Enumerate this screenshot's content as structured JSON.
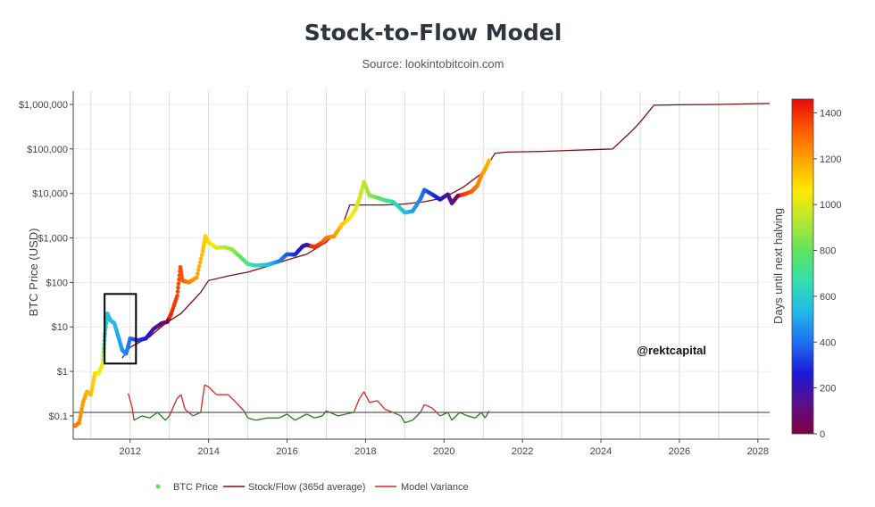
{
  "chart_data": {
    "type": "scatter",
    "title": "Stock-to-Flow Model",
    "subtitle": "Source: lookintobitcoin.com",
    "ylabel": "BTC Price (USD)",
    "xlabel": "",
    "y_scale": "log",
    "ylim": [
      0.03,
      2000000
    ],
    "xlim": [
      2010.55,
      2028.3
    ],
    "x_ticks": [
      2012,
      2014,
      2016,
      2018,
      2020,
      2022,
      2024,
      2026,
      2028
    ],
    "x_tick_labels": [
      "2012",
      "2014",
      "2016",
      "2018",
      "2020",
      "2022",
      "2024",
      "2026",
      "2028"
    ],
    "y_ticks": [
      0.1,
      1,
      10,
      100,
      1000,
      10000,
      100000,
      1000000
    ],
    "y_tick_labels": [
      "$0.1",
      "$1",
      "$10",
      "$100",
      "$1,000",
      "$10,000",
      "$100,000",
      "$1,000,000"
    ],
    "grid": true,
    "legend_position": "bottom-center",
    "reference_line_y": 0.12,
    "series": [
      {
        "name": "BTC Price",
        "mode": "markers",
        "color_by": "days_until_next_halving",
        "points": [
          [
            2010.6,
            0.06,
            1290
          ],
          [
            2010.7,
            0.07,
            1250
          ],
          [
            2010.8,
            0.2,
            1210
          ],
          [
            2010.9,
            0.35,
            1170
          ],
          [
            2011.0,
            0.3,
            1140
          ],
          [
            2011.1,
            0.9,
            1100
          ],
          [
            2011.2,
            0.9,
            1060
          ],
          [
            2011.3,
            1.5,
            1020
          ],
          [
            2011.35,
            6,
            600
          ],
          [
            2011.42,
            20,
            580
          ],
          [
            2011.5,
            14,
            560
          ],
          [
            2011.6,
            12,
            540
          ],
          [
            2011.7,
            6,
            500
          ],
          [
            2011.8,
            3,
            470
          ],
          [
            2011.9,
            2.5,
            430
          ],
          [
            2012.0,
            5.5,
            400
          ],
          [
            2012.2,
            5,
            330
          ],
          [
            2012.4,
            5.5,
            260
          ],
          [
            2012.6,
            9,
            180
          ],
          [
            2012.8,
            12,
            100
          ],
          [
            2012.95,
            13,
            30
          ],
          [
            2013.05,
            20,
            1410
          ],
          [
            2013.2,
            50,
            1370
          ],
          [
            2013.28,
            220,
            1350
          ],
          [
            2013.33,
            110,
            1330
          ],
          [
            2013.5,
            100,
            1270
          ],
          [
            2013.7,
            130,
            1200
          ],
          [
            2013.85,
            500,
            1140
          ],
          [
            2013.92,
            1100,
            1120
          ],
          [
            2014.0,
            800,
            1090
          ],
          [
            2014.2,
            600,
            1020
          ],
          [
            2014.4,
            620,
            950
          ],
          [
            2014.6,
            550,
            880
          ],
          [
            2014.8,
            380,
            800
          ],
          [
            2015.0,
            260,
            730
          ],
          [
            2015.2,
            240,
            660
          ],
          [
            2015.5,
            250,
            550
          ],
          [
            2015.8,
            300,
            440
          ],
          [
            2016.0,
            430,
            370
          ],
          [
            2016.2,
            420,
            300
          ],
          [
            2016.4,
            650,
            220
          ],
          [
            2016.5,
            700,
            180
          ],
          [
            2016.7,
            620,
            1400
          ],
          [
            2016.9,
            800,
            1350
          ],
          [
            2017.0,
            1000,
            1290
          ],
          [
            2017.2,
            1100,
            1220
          ],
          [
            2017.4,
            2000,
            1140
          ],
          [
            2017.6,
            2800,
            1070
          ],
          [
            2017.75,
            4500,
            1020
          ],
          [
            2017.85,
            8000,
            980
          ],
          [
            2017.96,
            18000,
            940
          ],
          [
            2018.1,
            9000,
            890
          ],
          [
            2018.3,
            8000,
            820
          ],
          [
            2018.5,
            7000,
            740
          ],
          [
            2018.7,
            6500,
            670
          ],
          [
            2018.85,
            5000,
            620
          ],
          [
            2019.0,
            3700,
            560
          ],
          [
            2019.2,
            4000,
            490
          ],
          [
            2019.4,
            7500,
            420
          ],
          [
            2019.5,
            12000,
            380
          ],
          [
            2019.7,
            9500,
            310
          ],
          [
            2019.9,
            7300,
            240
          ],
          [
            2020.1,
            9500,
            170
          ],
          [
            2020.2,
            6000,
            130
          ],
          [
            2020.35,
            8800,
            60
          ],
          [
            2020.5,
            9500,
            1400
          ],
          [
            2020.7,
            11000,
            1330
          ],
          [
            2020.85,
            15000,
            1270
          ],
          [
            2020.95,
            25000,
            1230
          ],
          [
            2021.05,
            35000,
            1200
          ],
          [
            2021.15,
            55000,
            1160
          ]
        ]
      },
      {
        "name": "Stock/Flow (365d average)",
        "mode": "line",
        "color": "#7a0e12",
        "points": [
          [
            2011.8,
            2
          ],
          [
            2012.0,
            3.5
          ],
          [
            2012.5,
            6
          ],
          [
            2012.9,
            12
          ],
          [
            2013.3,
            20
          ],
          [
            2013.8,
            60
          ],
          [
            2014.0,
            110
          ],
          [
            2014.5,
            140
          ],
          [
            2015.0,
            170
          ],
          [
            2015.5,
            230
          ],
          [
            2016.0,
            320
          ],
          [
            2016.5,
            430
          ],
          [
            2017.0,
            800
          ],
          [
            2017.4,
            1800
          ],
          [
            2017.6,
            5500
          ],
          [
            2018.5,
            5500
          ],
          [
            2019.0,
            5800
          ],
          [
            2019.5,
            6500
          ],
          [
            2020.0,
            8000
          ],
          [
            2020.5,
            14000
          ],
          [
            2021.0,
            30000
          ],
          [
            2021.3,
            80000
          ],
          [
            2021.6,
            85000
          ],
          [
            2022.5,
            88000
          ],
          [
            2024.0,
            98000
          ],
          [
            2024.3,
            100000
          ],
          [
            2024.8,
            260000
          ],
          [
            2025.0,
            400000
          ],
          [
            2025.35,
            960000
          ],
          [
            2026.0,
            980000
          ],
          [
            2027.0,
            1000000
          ],
          [
            2028.3,
            1050000
          ]
        ]
      },
      {
        "name": "Model Variance",
        "mode": "line",
        "color_segments": {
          "above_reference": "#d62728",
          "below_reference": "#2a7a1e"
        },
        "points": [
          [
            2011.95,
            0.32
          ],
          [
            2012.05,
            0.16
          ],
          [
            2012.1,
            0.08
          ],
          [
            2012.3,
            0.1
          ],
          [
            2012.5,
            0.09
          ],
          [
            2012.7,
            0.12
          ],
          [
            2012.9,
            0.08
          ],
          [
            2013.0,
            0.1
          ],
          [
            2013.2,
            0.25
          ],
          [
            2013.3,
            0.3
          ],
          [
            2013.4,
            0.14
          ],
          [
            2013.6,
            0.1
          ],
          [
            2013.8,
            0.12
          ],
          [
            2013.9,
            0.5
          ],
          [
            2014.0,
            0.45
          ],
          [
            2014.2,
            0.3
          ],
          [
            2014.5,
            0.3
          ],
          [
            2014.7,
            0.2
          ],
          [
            2014.9,
            0.13
          ],
          [
            2015.0,
            0.09
          ],
          [
            2015.2,
            0.08
          ],
          [
            2015.5,
            0.09
          ],
          [
            2015.8,
            0.09
          ],
          [
            2016.0,
            0.11
          ],
          [
            2016.2,
            0.08
          ],
          [
            2016.5,
            0.11
          ],
          [
            2016.7,
            0.09
          ],
          [
            2016.9,
            0.1
          ],
          [
            2017.0,
            0.13
          ],
          [
            2017.3,
            0.1
          ],
          [
            2017.5,
            0.11
          ],
          [
            2017.7,
            0.12
          ],
          [
            2017.85,
            0.25
          ],
          [
            2017.96,
            0.35
          ],
          [
            2018.1,
            0.2
          ],
          [
            2018.3,
            0.22
          ],
          [
            2018.5,
            0.14
          ],
          [
            2018.7,
            0.12
          ],
          [
            2018.9,
            0.1
          ],
          [
            2019.0,
            0.07
          ],
          [
            2019.2,
            0.08
          ],
          [
            2019.4,
            0.12
          ],
          [
            2019.5,
            0.18
          ],
          [
            2019.7,
            0.15
          ],
          [
            2019.9,
            0.1
          ],
          [
            2020.1,
            0.12
          ],
          [
            2020.2,
            0.08
          ],
          [
            2020.4,
            0.12
          ],
          [
            2020.6,
            0.1
          ],
          [
            2020.8,
            0.09
          ],
          [
            2020.95,
            0.12
          ],
          [
            2021.05,
            0.09
          ],
          [
            2021.15,
            0.13
          ]
        ]
      }
    ],
    "colorbar": {
      "title": "Days until next halving",
      "min": 0,
      "max": 1460,
      "ticks": [
        0,
        200,
        400,
        600,
        800,
        1000,
        1200,
        1400
      ],
      "tick_labels": [
        "0",
        "200",
        "400",
        "600",
        "800",
        "1000",
        "1200",
        "1400"
      ],
      "colorscale": [
        "#800040",
        "#5b0f8a",
        "#1a1ad6",
        "#1f6ff0",
        "#22b8e8",
        "#32e0b0",
        "#5fe35f",
        "#b5e632",
        "#ffea00",
        "#ffa500",
        "#ff5a00",
        "#e60a0a"
      ]
    },
    "highlight_box": {
      "x": [
        2011.35,
        2012.15
      ],
      "y": [
        1.5,
        55
      ]
    },
    "annotations": [
      {
        "text": "@rektcapital",
        "x": 2025.8,
        "y": 2.4
      }
    ]
  }
}
